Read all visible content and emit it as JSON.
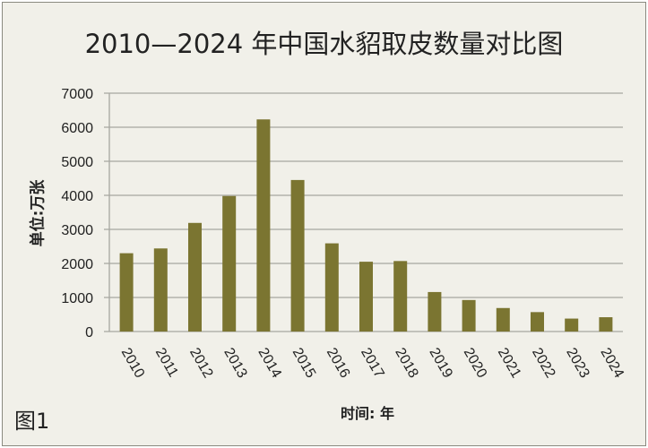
{
  "chart_data": {
    "type": "bar",
    "title": "2010—2024 年中国水貂取皮数量对比图",
    "ylabel": "单位:万张",
    "xlabel": "时间: 年",
    "figure_label": "图1",
    "categories": [
      "2010",
      "2011",
      "2012",
      "2013",
      "2014",
      "2015",
      "2016",
      "2017",
      "2018",
      "2019",
      "2020",
      "2021",
      "2022",
      "2023",
      "2024"
    ],
    "values": [
      2300,
      2440,
      3190,
      3980,
      6230,
      4450,
      2590,
      2050,
      2070,
      1160,
      925,
      690,
      570,
      380,
      420
    ],
    "ylim": [
      0,
      7000
    ],
    "yticks": [
      0,
      1000,
      2000,
      3000,
      4000,
      5000,
      6000,
      7000
    ],
    "grid": true,
    "legend": "none",
    "colors": {
      "bar": "#7b7531",
      "grid": "#a6a6a0",
      "background": "#f1f0e9"
    }
  }
}
